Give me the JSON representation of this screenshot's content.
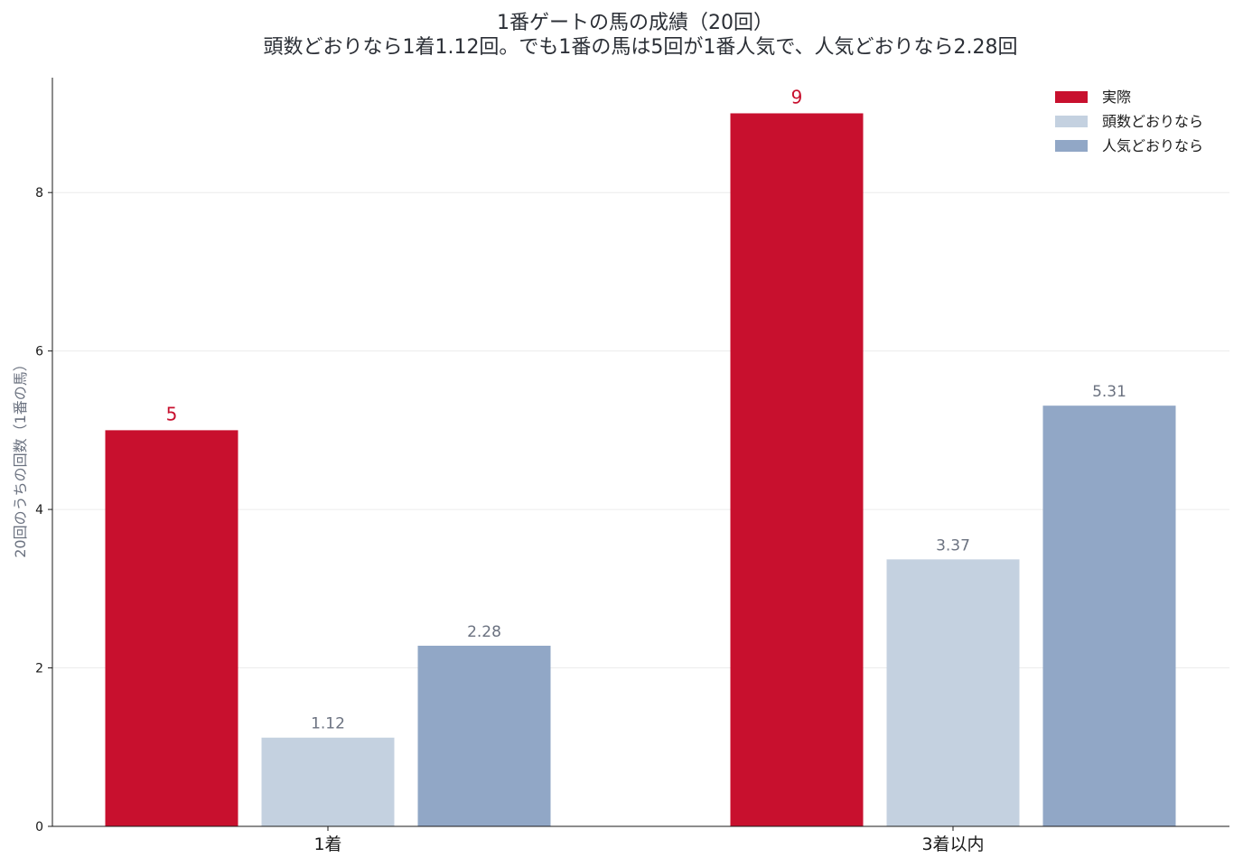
{
  "chart_data": {
    "type": "bar",
    "title": "1番ゲートの馬の成績（20回）",
    "subtitle": "頭数どおりなら1着1.12回。でも1番の馬は5回が1番人気で、人気どおりなら2.28回",
    "xlabel": "",
    "ylabel": "20回のうちの回数（1番の馬）",
    "categories": [
      "1着",
      "3着以内"
    ],
    "ylim": [
      0,
      9.45
    ],
    "yticks": [
      0,
      2,
      4,
      6,
      8
    ],
    "grid": true,
    "legend_position": "top-right",
    "series": [
      {
        "name": "実際",
        "values": [
          5,
          9
        ],
        "labels": [
          "5",
          "9"
        ],
        "color": "#c8102e",
        "label_color": "#c8102e"
      },
      {
        "name": "頭数どおりなら",
        "values": [
          1.12,
          3.37
        ],
        "labels": [
          "1.12",
          "3.37"
        ],
        "color": "#c4d1e0",
        "label_color": "#6b7280"
      },
      {
        "name": "人気どおりなら",
        "values": [
          2.28,
          5.31
        ],
        "labels": [
          "2.28",
          "5.31"
        ],
        "color": "#91a7c6",
        "label_color": "#6b7280"
      }
    ]
  }
}
